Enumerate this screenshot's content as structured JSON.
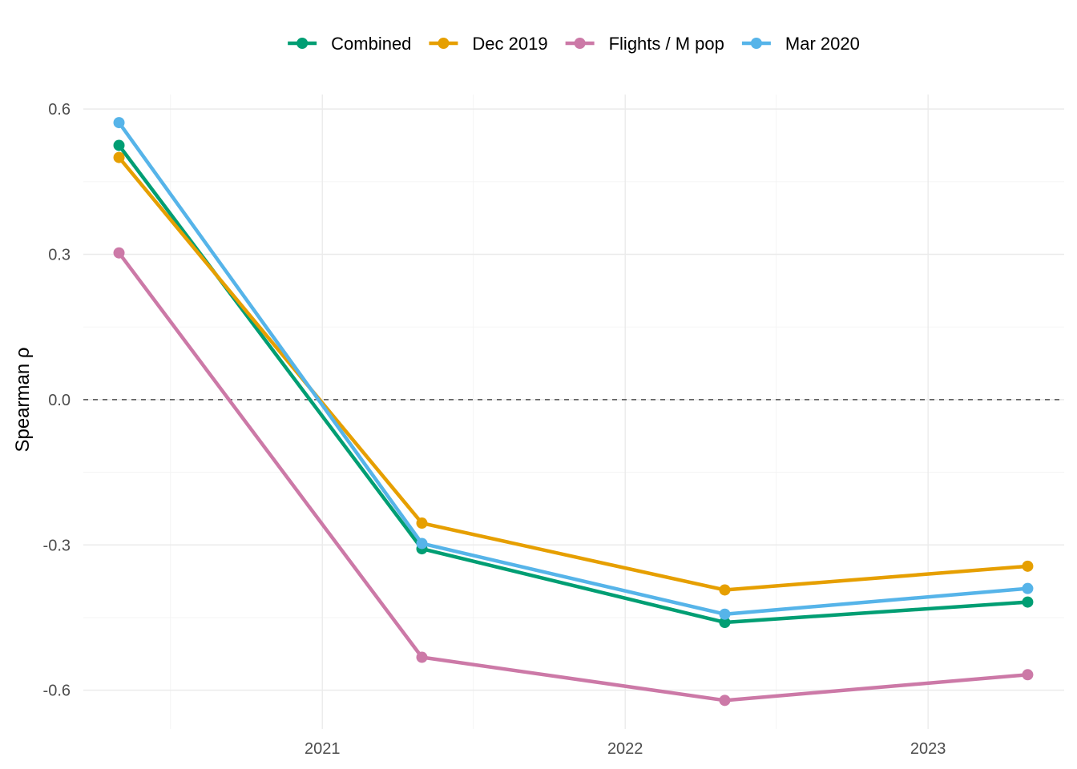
{
  "chart_data": {
    "type": "line",
    "title": "",
    "xlabel": "",
    "ylabel": "Spearman ρ",
    "x": [
      "2020-05-01",
      "2021-05-01",
      "2022-05-01",
      "2023-05-01"
    ],
    "x_ticks": [
      "2021",
      "2022",
      "2023"
    ],
    "y_ticks": [
      "0.6",
      "0.3",
      "0.0",
      "-0.3",
      "-0.6"
    ],
    "ylim": [
      -0.68,
      0.63
    ],
    "xlim": [
      "2020-03-19",
      "2023-06-14"
    ],
    "grid": true,
    "reference_line": {
      "y": 0,
      "style": "dashed"
    },
    "legend_position": "top",
    "series": [
      {
        "name": "Combined",
        "color": "#009E73",
        "values": [
          0.525,
          -0.308,
          -0.46,
          -0.418
        ]
      },
      {
        "name": "Dec 2019",
        "color": "#E69F00",
        "values": [
          0.5,
          -0.255,
          -0.393,
          -0.344
        ]
      },
      {
        "name": "Flights / M pop",
        "color": "#CC79A7",
        "values": [
          0.303,
          -0.532,
          -0.621,
          -0.568
        ]
      },
      {
        "name": "Mar 2020",
        "color": "#56B4E9",
        "values": [
          0.572,
          -0.297,
          -0.443,
          -0.39
        ]
      }
    ]
  }
}
